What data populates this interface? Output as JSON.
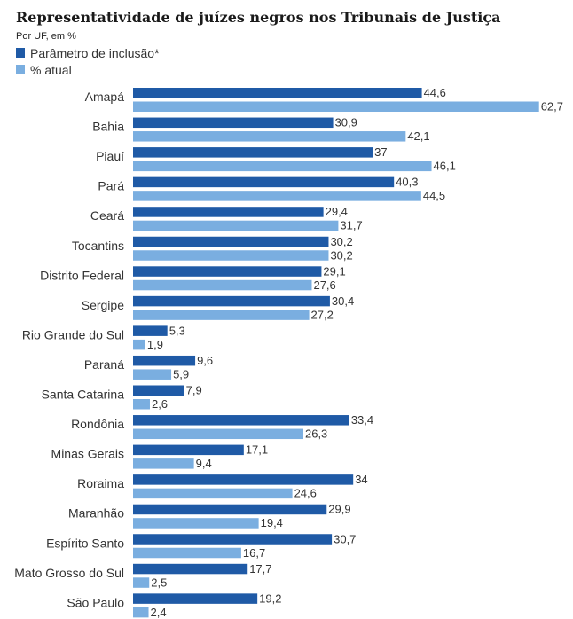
{
  "chart_data": {
    "type": "bar",
    "orientation": "horizontal",
    "title": "Representatividade de juízes negros nos Tribunais de Justiça",
    "subtitle": "Por UF, em %",
    "legend_position": "top-left",
    "grid": false,
    "xlim": [
      0,
      70
    ],
    "categories": [
      "Amapá",
      "Bahia",
      "Piauí",
      "Pará",
      "Ceará",
      "Tocantins",
      "Distrito Federal",
      "Sergipe",
      "Rio Grande do Sul",
      "Paraná",
      "Santa Catarina",
      "Rondônia",
      "Minas Gerais",
      "Roraima",
      "Maranhão",
      "Espírito Santo",
      "Mato Grosso do Sul",
      "São Paulo"
    ],
    "series": [
      {
        "name": "Parâmetro de inclusão*",
        "color": "#1f5aa6",
        "values": [
          44.6,
          30.9,
          37,
          40.3,
          29.4,
          30.2,
          29.1,
          30.4,
          5.3,
          9.6,
          7.9,
          33.4,
          17.1,
          34,
          29.9,
          30.7,
          17.7,
          19.2
        ],
        "labels": [
          "44,6",
          "30,9",
          "37",
          "40,3",
          "29,4",
          "30,2",
          "29,1",
          "30,4",
          "5,3",
          "9,6",
          "7,9",
          "33,4",
          "17,1",
          "34",
          "29,9",
          "30,7",
          "17,7",
          "19,2"
        ]
      },
      {
        "name": "% atual",
        "color": "#7aaee0",
        "values": [
          62.7,
          42.1,
          46.1,
          44.5,
          31.7,
          30.2,
          27.6,
          27.2,
          1.9,
          5.9,
          2.6,
          26.3,
          9.4,
          24.6,
          19.4,
          16.7,
          2.5,
          2.4
        ],
        "labels": [
          "62,7",
          "42,1",
          "46,1",
          "44,5",
          "31,7",
          "30,2",
          "27,6",
          "27,2",
          "1,9",
          "5,9",
          "2,6",
          "26,3",
          "9,4",
          "24,6",
          "19,4",
          "16,7",
          "2,5",
          "2,4"
        ]
      }
    ]
  }
}
